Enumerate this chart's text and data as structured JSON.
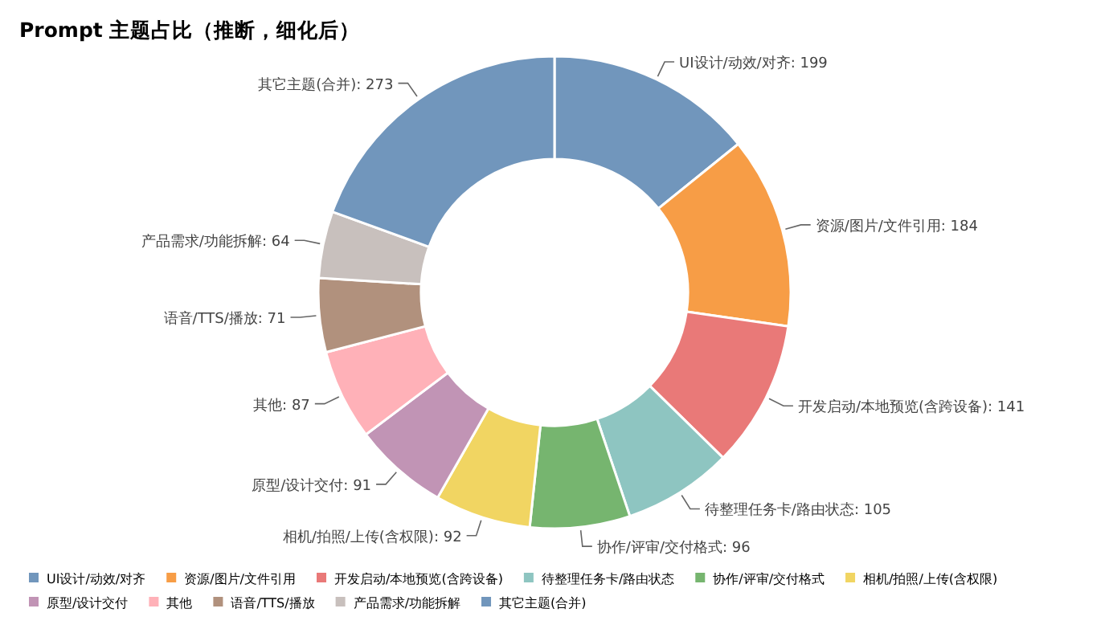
{
  "chart_data": {
    "type": "donut",
    "title": "Prompt 主题占比（推断，细化后）",
    "categories": [
      "UI设计/动效/对齐",
      "资源/图片/文件引用",
      "开发启动/本地预览(含跨设备)",
      "待整理任务卡/路由状态",
      "协作/评审/交付格式",
      "相机/拍照/上传(含权限)",
      "原型/设计交付",
      "其他",
      "语音/TTS/播放",
      "产品需求/功能拆解",
      "其它主题(合并)"
    ],
    "values": [
      199,
      184,
      141,
      105,
      96,
      92,
      91,
      87,
      71,
      64,
      273
    ],
    "colors": [
      "#7196bc",
      "#f79d46",
      "#e97978",
      "#8ec5c1",
      "#76b56f",
      "#f1d562",
      "#c194b5",
      "#ffb1b8",
      "#b1917d",
      "#c8c0bd",
      "#7196bc"
    ],
    "value_labels": [
      "UI设计/动效/对齐: 199",
      "资源/图片/文件引用: 184",
      "开发启动/本地预览(含跨设备): 141",
      "待整理任务卡/路由状态: 105",
      "协作/评审/交付格式: 96",
      "相机/拍照/上传(含权限): 92",
      "原型/设计交付: 91",
      "其他: 87",
      "语音/TTS/播放: 71",
      "产品需求/功能拆解: 64",
      "其它主题(合并): 273"
    ],
    "legend": "bottom"
  }
}
